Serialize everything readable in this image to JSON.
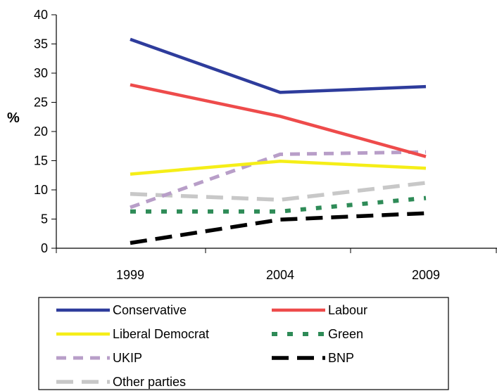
{
  "chart_data": {
    "type": "line",
    "x": [
      "1999",
      "2004",
      "2009"
    ],
    "ylabel": "%",
    "ylim": [
      0,
      40
    ],
    "yticks": [
      "0",
      "5",
      "10",
      "15",
      "20",
      "25",
      "30",
      "35",
      "40"
    ],
    "grid": false,
    "legend_position": "bottom",
    "series": [
      {
        "name": "Conservative",
        "values": [
          35.8,
          26.7,
          27.7
        ],
        "color": "#2e3c9c",
        "style": "solid"
      },
      {
        "name": "Labour",
        "values": [
          28.0,
          22.6,
          15.7
        ],
        "color": "#ee4b4b",
        "style": "solid"
      },
      {
        "name": "Liberal Democrat",
        "values": [
          12.7,
          14.9,
          13.7
        ],
        "color": "#f5ee18",
        "style": "solid"
      },
      {
        "name": "Green",
        "values": [
          6.3,
          6.3,
          8.6
        ],
        "color": "#2e8b57",
        "style": "dotted"
      },
      {
        "name": "UKIP",
        "values": [
          7.0,
          16.1,
          16.5
        ],
        "color": "#b89ec8",
        "style": "dashed"
      },
      {
        "name": "BNP",
        "values": [
          0.9,
          4.9,
          6.0
        ],
        "color": "#000000",
        "style": "longdash"
      },
      {
        "name": "Other parties",
        "values": [
          9.3,
          8.3,
          11.2
        ],
        "color": "#c8c8c8",
        "style": "longdash"
      }
    ]
  }
}
